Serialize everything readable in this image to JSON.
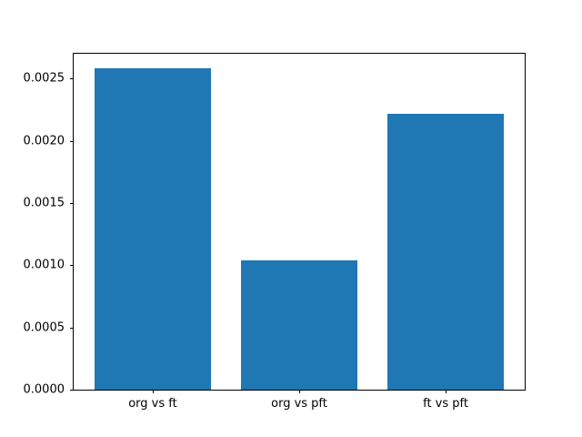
{
  "chart_data": {
    "type": "bar",
    "categories": [
      "org vs ft",
      "org vs pft",
      "ft vs pft"
    ],
    "values": [
      0.00258,
      0.00104,
      0.00222
    ],
    "title": "",
    "xlabel": "",
    "ylabel": "",
    "ylim": [
      0,
      0.0027
    ],
    "xlim": [
      -0.54,
      2.54
    ],
    "bar_width": 0.8,
    "ytick_values": [
      0.0,
      0.0005,
      0.001,
      0.0015,
      0.002,
      0.0025
    ],
    "ytick_labels": [
      "0.0000",
      "0.0005",
      "0.0010",
      "0.0015",
      "0.0020",
      "0.0025"
    ],
    "bar_color": "#1f77b4",
    "grid": false,
    "legend_position": "none",
    "background_color": "#ffffff"
  }
}
